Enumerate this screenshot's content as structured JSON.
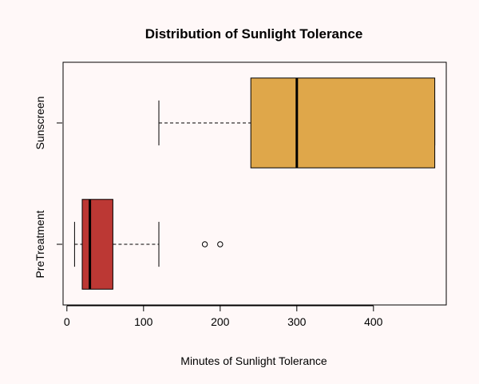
{
  "chart_data": {
    "type": "boxplot",
    "orientation": "horizontal",
    "title": "Distribution of Sunlight Tolerance",
    "xlabel": "Minutes of Sunlight Tolerance",
    "ylabel": "",
    "xlim": [
      -5,
      495
    ],
    "xticks": [
      0,
      100,
      200,
      300,
      400
    ],
    "grid": false,
    "series": [
      {
        "name": "PreTreatment",
        "color": "#bc3834",
        "whisker_low": 10,
        "q1": 20,
        "median": 30,
        "q3": 60,
        "whisker_high": 120,
        "outliers": [
          180,
          200
        ]
      },
      {
        "name": "Sunscreen",
        "color": "#dfa74a",
        "whisker_low": 120,
        "q1": 240,
        "median": 300,
        "q3": 480,
        "whisker_high": 480,
        "outliers": []
      }
    ]
  }
}
